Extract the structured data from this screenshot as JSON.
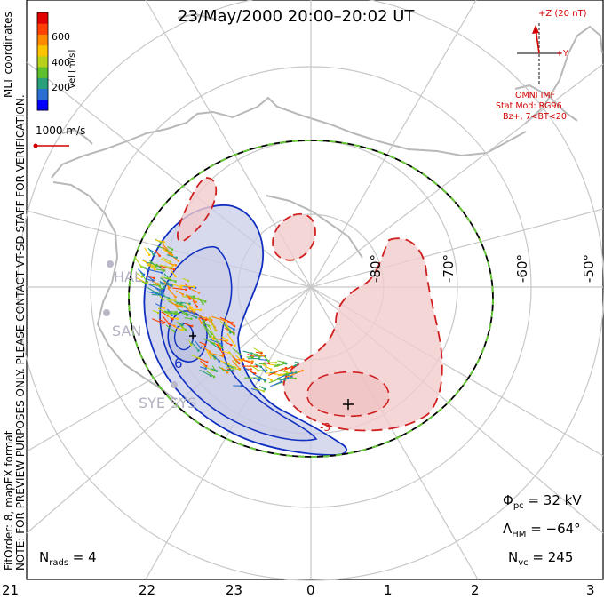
{
  "title": "23/May/2000 20:00–20:02 UT",
  "side_text": {
    "preview_line1": "NOTE: FOR PREVIEW PURPOSES ONLY. PLEASE CONTACT VT-SD STAFF FOR VERIFICATION.",
    "preview_line2": "FitOrder: 8, mapEX format",
    "mlt_coordinates": "MLT coordinates"
  },
  "colorbar": {
    "label": "Vel [m/s]",
    "ticks": [
      "600",
      "400",
      "200"
    ],
    "colors": [
      "#0000ff",
      "#2b6fd6",
      "#2aa07a",
      "#5ec02a",
      "#b8d21c",
      "#ffc400",
      "#ff8a00",
      "#ff4000",
      "#e00000"
    ]
  },
  "reference_vector": "1000 m/s",
  "imf": {
    "z_label": "+Z (20 nT)",
    "y_label": "+Y",
    "source": "OMNI IMF",
    "model": "Stat Mod: RG96",
    "condition": "Bz+, 7<BT<20"
  },
  "latitude_labels": [
    "-80°",
    "-70°",
    "-60°",
    "-50°"
  ],
  "mlt_ticks": [
    "21",
    "22",
    "23",
    "0",
    "1",
    "2",
    "3"
  ],
  "radar_sites": [
    "HAL",
    "SAN",
    "SYE SYS"
  ],
  "contour_labels": [
    "6",
    "-3"
  ],
  "stats": {
    "phi_pc": "32 kV",
    "lambda_hm": "−64°",
    "n_vc": "245",
    "n_rads": "4"
  },
  "colors": {
    "negative_cell": "#1030c0",
    "positive_cell": "#d02020",
    "boundary_green": "#66cc33",
    "coastline": "#b8b8b8",
    "grid": "#c8c8c8",
    "annotation_red": "#d40000"
  }
}
